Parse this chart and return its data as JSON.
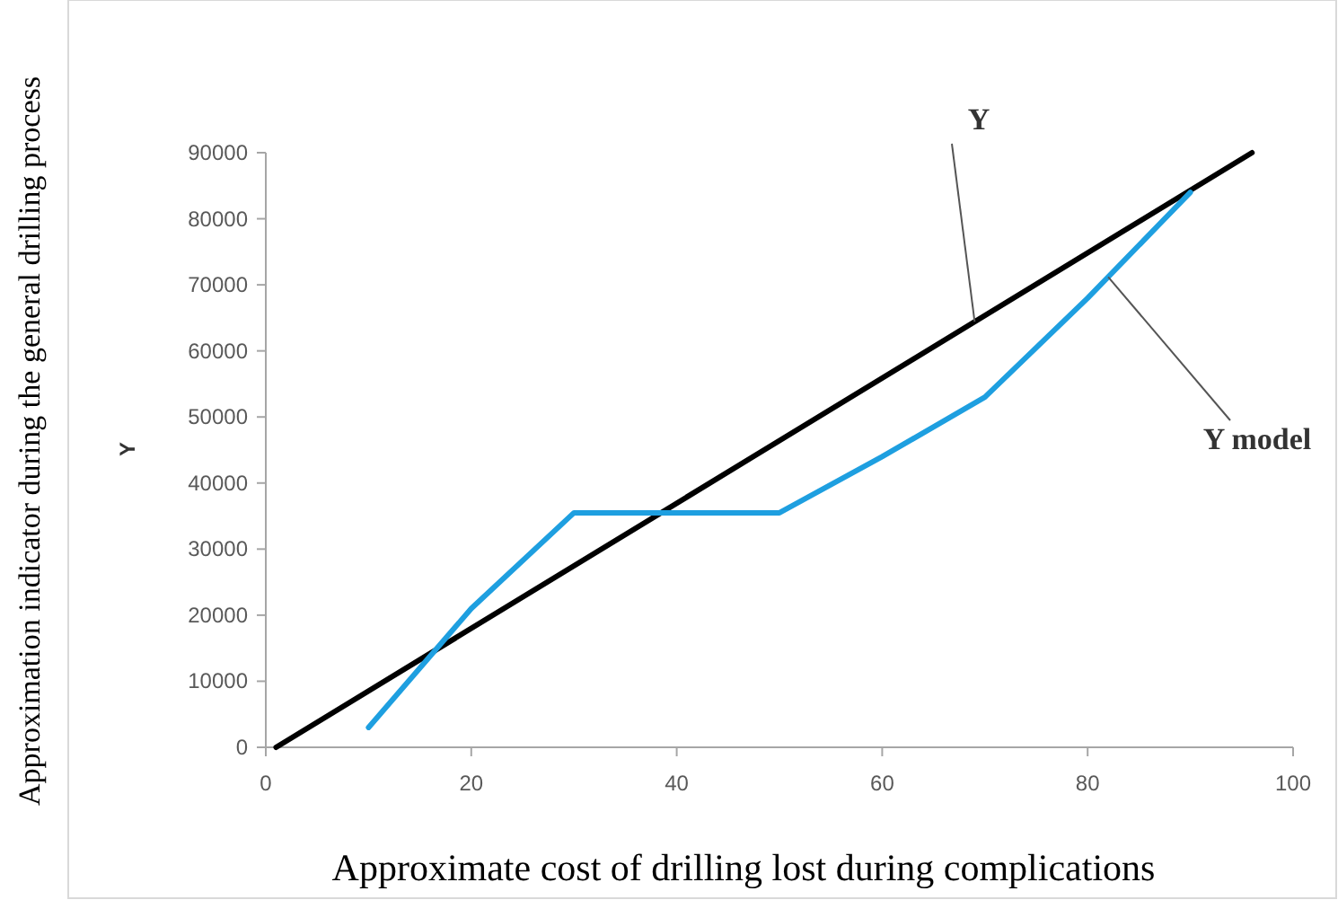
{
  "chart_data": {
    "type": "line",
    "xlabel": "Approximate cost of drilling lost during complications",
    "ylabel": "Approximation indicator during the general drilling process",
    "annotations": [
      "Y"
    ],
    "xlim": [
      0,
      100
    ],
    "xticks": [
      0,
      20,
      40,
      60,
      80,
      100
    ],
    "ylim": [
      0,
      90000
    ],
    "yticks": [
      0,
      10000,
      20000,
      30000,
      40000,
      50000,
      60000,
      70000,
      80000,
      90000
    ],
    "grid": false,
    "legend": false,
    "series": [
      {
        "name": "Y",
        "color": "#000000",
        "x": [
          1,
          96
        ],
        "values": [
          0,
          90000
        ]
      },
      {
        "name": "Y model",
        "color": "#1e9fe0",
        "x": [
          10,
          20,
          30,
          50,
          60,
          70,
          80,
          90
        ],
        "values": [
          3000,
          21000,
          35500,
          35500,
          44000,
          53000,
          68000,
          84000
        ]
      }
    ]
  }
}
